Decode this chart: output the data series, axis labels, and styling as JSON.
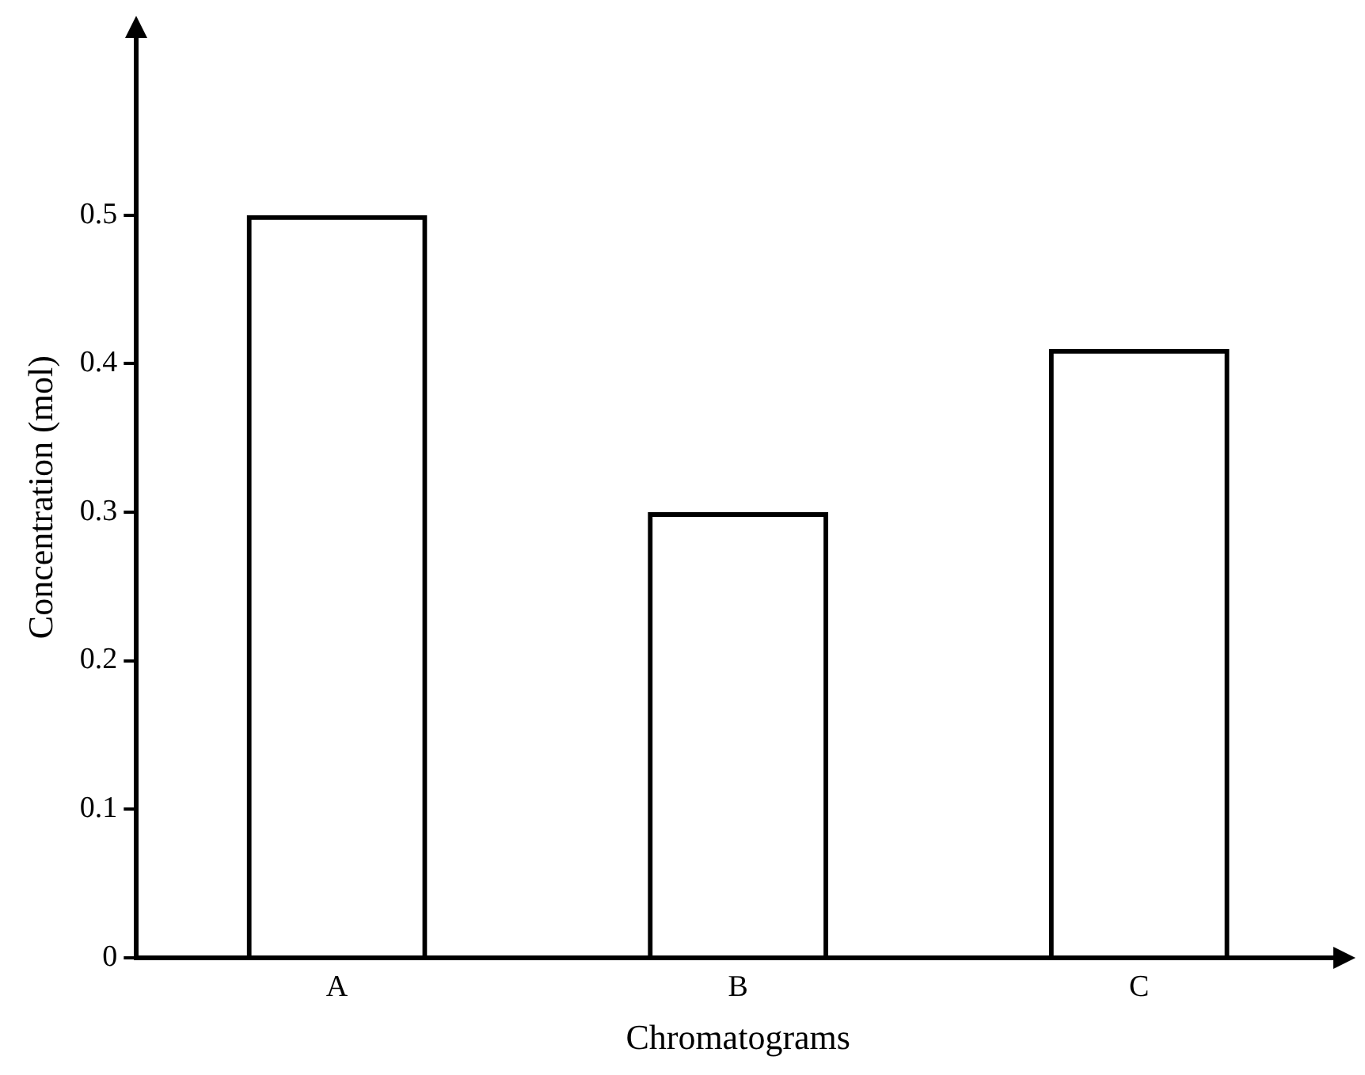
{
  "chart_data": {
    "type": "bar",
    "xlabel": "Chromatograms",
    "ylabel": "Concentration (mol)",
    "categories": [
      "A",
      "B",
      "C"
    ],
    "values": [
      0.5,
      0.3,
      0.41
    ],
    "color": "#000000",
    "ylim": [
      0,
      0.62
    ],
    "yticks": [
      0,
      0.1,
      0.2,
      0.3,
      0.4,
      0.5
    ],
    "grid": false,
    "legend": false
  }
}
